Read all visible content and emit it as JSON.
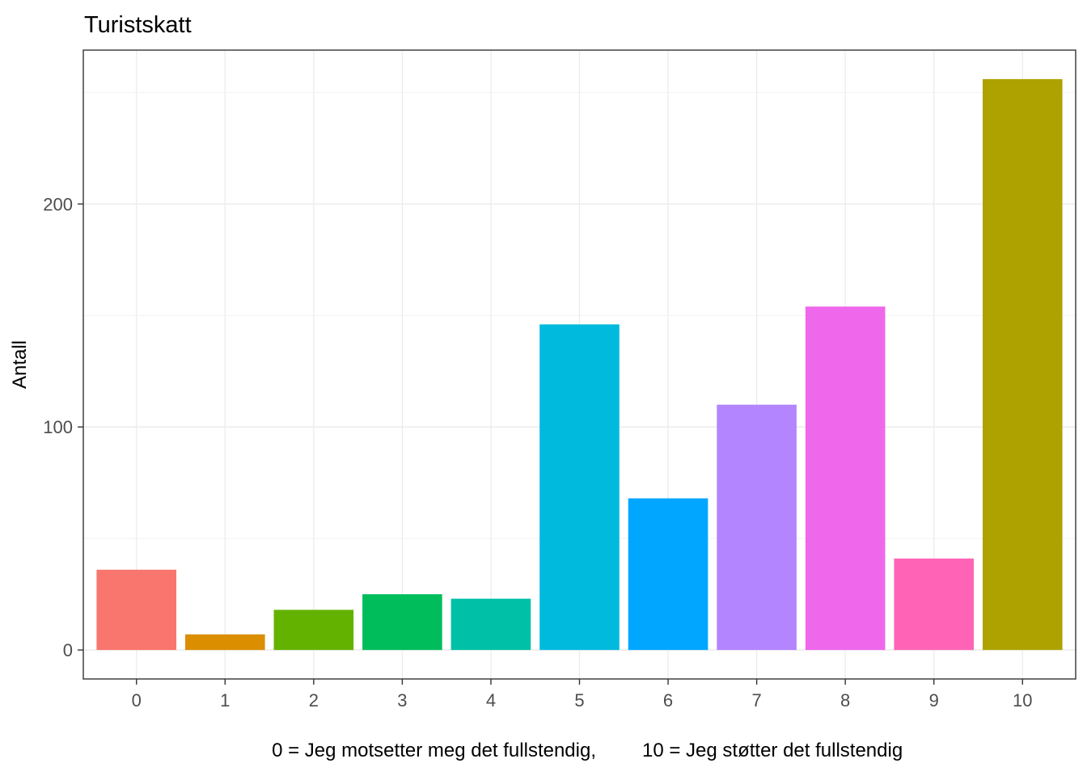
{
  "chart_data": {
    "type": "bar",
    "title": "Turistskatt",
    "ylabel": "Antall",
    "xlabel_parts": [
      "0 = Jeg motsetter meg det fullstendig,",
      "10 = Jeg støtter det fullstendig"
    ],
    "categories": [
      "0",
      "1",
      "2",
      "3",
      "4",
      "5",
      "6",
      "7",
      "8",
      "9",
      "10"
    ],
    "values": [
      36,
      7,
      18,
      25,
      23,
      146,
      68,
      110,
      154,
      41,
      256
    ],
    "bar_colors": [
      "#F8766D",
      "#DB8E00",
      "#64B200",
      "#00BD5C",
      "#00C1A7",
      "#00BADE",
      "#00A6FF",
      "#B385FF",
      "#EF67EB",
      "#FF63B6",
      "#AEA200"
    ],
    "y_ticks": [
      0,
      100,
      200
    ],
    "y_minor_ticks": [
      50,
      150,
      250
    ],
    "ylim": [
      -13,
      269
    ],
    "grid": true,
    "legend_position": "none",
    "colors": {
      "background": "#FFFFFF",
      "panel_background": "#FFFFFF",
      "panel_border": "#333333",
      "grid_major": "#EBEBEB",
      "grid_minor": "#F2F2F2",
      "axis_text": "#4D4D4D",
      "tick_mark": "#333333",
      "title_text": "#000000"
    }
  }
}
